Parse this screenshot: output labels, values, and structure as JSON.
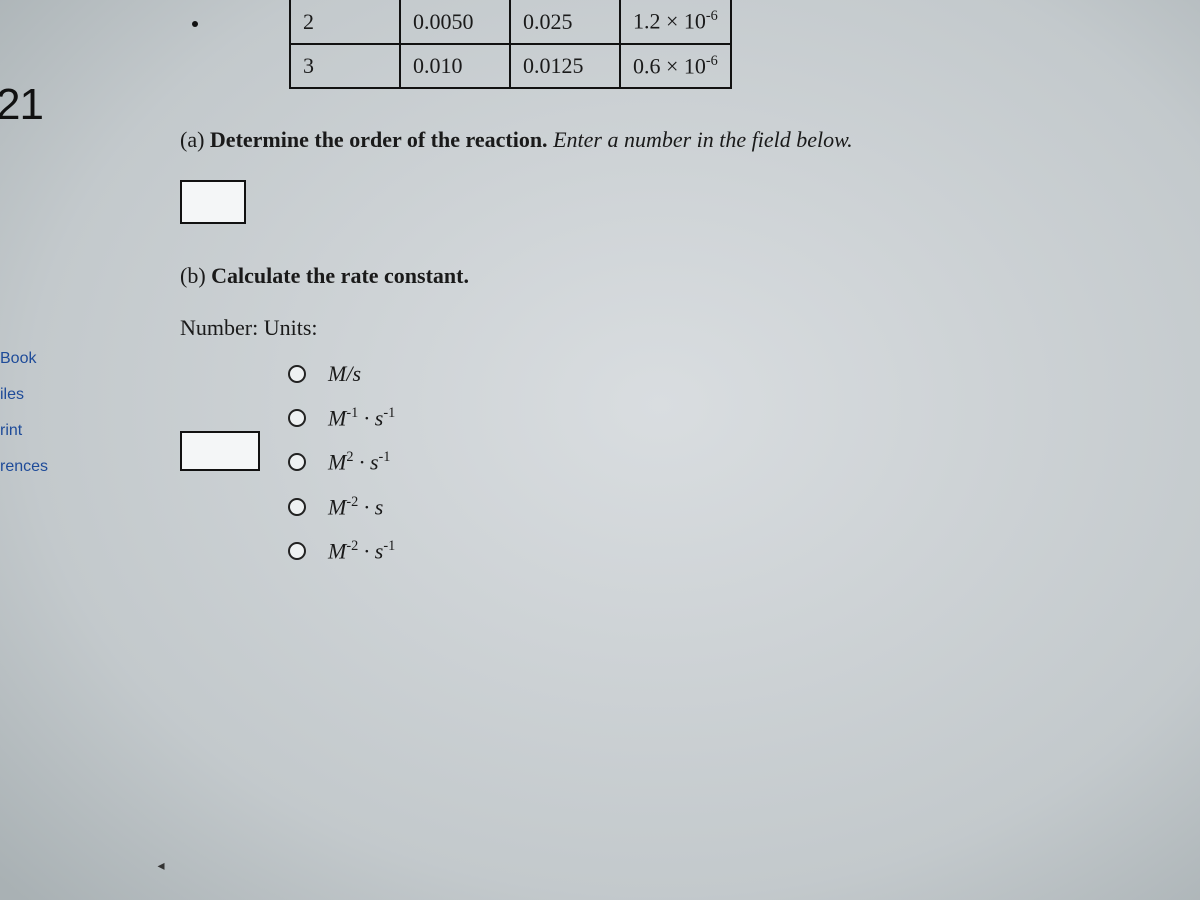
{
  "question_number": "21",
  "sidebar": {
    "items": [
      "Book",
      "iles",
      "rint",
      "rences"
    ]
  },
  "table": {
    "rows": [
      {
        "exp": "2",
        "c1": "0.0050",
        "c2": "0.025",
        "rate_base": "1.2 × 10",
        "rate_exp": "-6",
        "bulleted": true
      },
      {
        "exp": "3",
        "c1": "0.010",
        "c2": "0.0125",
        "rate_base": "0.6 × 10",
        "rate_exp": "-6",
        "bulleted": false
      }
    ],
    "border_color": "#111111",
    "font_size_pt": 16
  },
  "part_a": {
    "label": "(a)",
    "text_bold": "Determine the order of the reaction.",
    "text_ital": "Enter a number in the field below."
  },
  "part_b": {
    "label": "(b)",
    "text_bold": "Calculate the rate constant."
  },
  "labels": {
    "number_units": "Number: Units:"
  },
  "units_options": [
    {
      "display": "M/s"
    },
    {
      "display_html": "M<sup>-1</sup> · s<sup>-1</sup>"
    },
    {
      "display_html": "M<sup>2</sup> · s<sup>-1</sup>"
    },
    {
      "display_html": "M<sup>-2</sup> · s"
    },
    {
      "display_html": "M<sup>-2</sup> · s<sup>-1</sup>"
    }
  ],
  "nav": {
    "left_arrow": "◂"
  },
  "style": {
    "body_bg": "#cfd4d6",
    "link_color": "#1e4b99",
    "text_color": "#1a1a1a",
    "input_border": "#111111",
    "input_bg": "#f4f6f7",
    "radio_border": "#222222",
    "font_family": "Times New Roman"
  }
}
